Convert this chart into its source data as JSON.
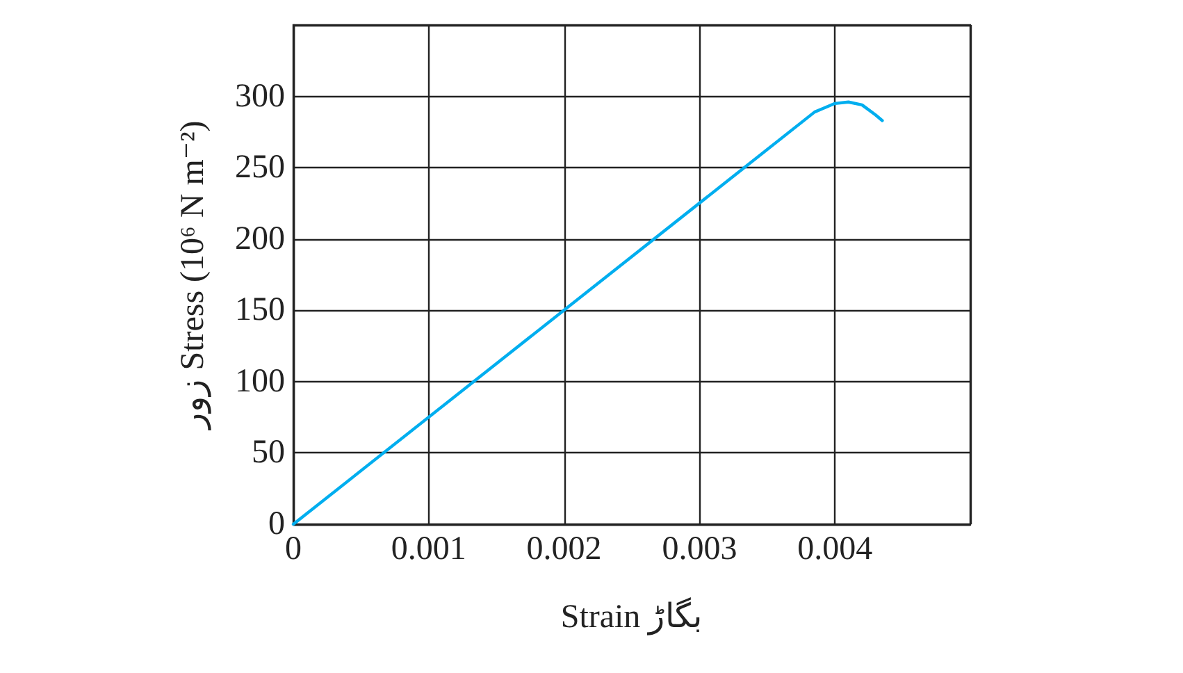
{
  "chart_data": {
    "type": "line",
    "xlabel": "Strain بگاڑ",
    "ylabel": "زور Stress (10⁶ N m⁻²)",
    "x": [
      0,
      0.00385,
      0.0039,
      0.004,
      0.0041,
      0.0042,
      0.0043,
      0.00435
    ],
    "series": [
      {
        "color": "#00aeef",
        "values": [
          0,
          289,
          291,
          295,
          296,
          294,
          287,
          283
        ]
      }
    ],
    "xlim": [
      0,
      0.005
    ],
    "xticks": [
      0,
      0.001,
      0.002,
      0.003,
      0.004,
      {
        "value": 0.005,
        "label": null
      }
    ],
    "ylim": [
      0,
      350
    ],
    "yticks": [
      0,
      50,
      100,
      150,
      200,
      250,
      300,
      {
        "value": 350,
        "label": null
      }
    ],
    "grid": true,
    "marker": "none",
    "line_style": "solid"
  }
}
